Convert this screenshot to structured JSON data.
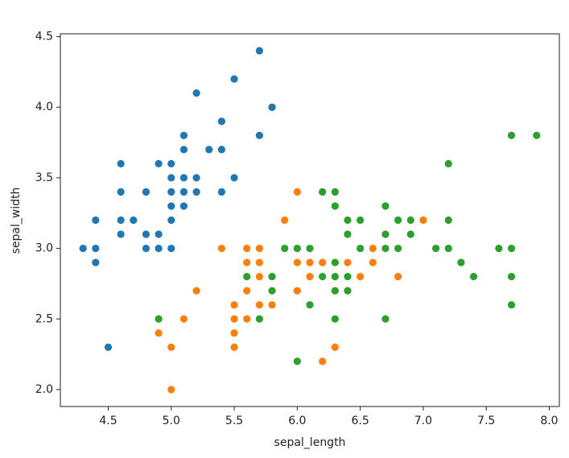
{
  "chart_data": {
    "type": "scatter",
    "x_label": "sepal_length",
    "y_label": "sepal_width",
    "xlim": [
      4.12,
      8.08
    ],
    "ylim": [
      1.88,
      4.52
    ],
    "xticks": [
      4.5,
      {
        "value": 5,
        "label": "5.0"
      },
      5.5,
      {
        "value": 6,
        "label": "6.0"
      },
      6.5,
      {
        "value": 7,
        "label": "7.0"
      },
      7.5,
      {
        "value": 8,
        "label": "8.0"
      }
    ],
    "yticks": [
      {
        "value": 2,
        "label": "2.0"
      },
      2.5,
      {
        "value": 3,
        "label": "3.0"
      },
      3.5,
      {
        "value": 4,
        "label": "4.0"
      },
      4.5
    ],
    "series": [
      {
        "color": "#1f77b4",
        "x": [
          5.1,
          4.9,
          4.7,
          4.6,
          5.0,
          5.4,
          4.6,
          5.0,
          4.4,
          4.9,
          5.4,
          4.8,
          4.8,
          4.3,
          5.8,
          5.7,
          5.4,
          5.1,
          5.7,
          5.1,
          5.4,
          5.1,
          4.6,
          5.1,
          4.8,
          5.0,
          5.0,
          5.2,
          5.2,
          4.7,
          4.8,
          5.4,
          5.2,
          5.5,
          4.9,
          5.0,
          5.5,
          4.9,
          4.4,
          5.1,
          5.0,
          4.5,
          4.4,
          5.0,
          5.1,
          4.8,
          5.1,
          4.6,
          5.3,
          5.0
        ],
        "values": [
          3.5,
          3.0,
          3.2,
          3.1,
          3.6,
          3.9,
          3.4,
          3.4,
          2.9,
          3.1,
          3.7,
          3.4,
          3.0,
          3.0,
          4.0,
          4.4,
          3.9,
          3.5,
          3.8,
          3.8,
          3.4,
          3.7,
          3.6,
          3.3,
          3.4,
          3.0,
          3.4,
          3.5,
          3.4,
          3.2,
          3.1,
          3.4,
          4.1,
          4.2,
          3.1,
          3.2,
          3.5,
          3.6,
          3.0,
          3.4,
          3.5,
          2.3,
          3.2,
          3.5,
          3.8,
          3.0,
          3.8,
          3.2,
          3.7,
          3.3
        ]
      },
      {
        "color": "#ff7f0e",
        "x": [
          7.0,
          6.4,
          6.9,
          5.5,
          6.5,
          5.7,
          6.3,
          4.9,
          6.6,
          5.2,
          5.0,
          5.9,
          6.0,
          6.1,
          5.6,
          6.7,
          5.6,
          5.8,
          6.2,
          5.6,
          5.9,
          6.1,
          6.3,
          6.1,
          6.4,
          6.6,
          6.8,
          6.7,
          6.0,
          5.7,
          5.5,
          5.5,
          5.8,
          6.0,
          5.4,
          6.0,
          6.7,
          6.3,
          5.6,
          5.5,
          5.5,
          6.1,
          5.8,
          5.0,
          5.6,
          5.7,
          5.7,
          6.2,
          5.1,
          5.7
        ],
        "values": [
          3.2,
          3.2,
          3.1,
          2.3,
          2.8,
          2.8,
          3.3,
          2.4,
          2.9,
          2.7,
          2.0,
          3.0,
          2.2,
          2.9,
          2.9,
          3.1,
          3.0,
          2.7,
          2.2,
          2.5,
          3.2,
          2.8,
          2.5,
          2.8,
          2.9,
          3.0,
          2.8,
          3.0,
          2.9,
          2.6,
          2.4,
          2.4,
          2.7,
          2.7,
          3.0,
          3.4,
          3.1,
          2.3,
          3.0,
          2.5,
          2.6,
          3.0,
          2.6,
          2.3,
          2.7,
          3.0,
          2.9,
          2.9,
          2.5,
          2.8
        ]
      },
      {
        "color": "#2ca02c",
        "x": [
          6.3,
          5.8,
          7.1,
          6.3,
          6.5,
          7.6,
          4.9,
          7.3,
          6.7,
          7.2,
          6.5,
          6.4,
          6.8,
          5.7,
          5.8,
          6.4,
          6.5,
          7.7,
          7.7,
          6.0,
          6.9,
          5.6,
          7.7,
          6.3,
          6.7,
          7.2,
          6.2,
          6.1,
          6.4,
          7.2,
          7.4,
          7.9,
          6.4,
          6.3,
          6.1,
          7.7,
          6.3,
          6.4,
          6.0,
          6.9,
          6.7,
          6.9,
          5.8,
          6.8,
          6.7,
          6.7,
          6.3,
          6.5,
          6.2,
          5.9
        ],
        "values": [
          3.3,
          2.7,
          3.0,
          2.9,
          3.0,
          3.0,
          2.5,
          2.9,
          2.5,
          3.6,
          3.2,
          2.7,
          3.0,
          2.5,
          2.8,
          3.2,
          3.0,
          3.8,
          2.6,
          2.2,
          3.2,
          2.8,
          2.8,
          2.7,
          3.3,
          3.2,
          2.8,
          3.0,
          2.8,
          3.0,
          2.8,
          3.8,
          2.8,
          2.8,
          2.6,
          3.0,
          3.4,
          3.1,
          3.0,
          3.1,
          3.1,
          3.1,
          2.7,
          3.2,
          3.3,
          3.0,
          2.5,
          3.0,
          3.4,
          3.0
        ]
      }
    ]
  }
}
